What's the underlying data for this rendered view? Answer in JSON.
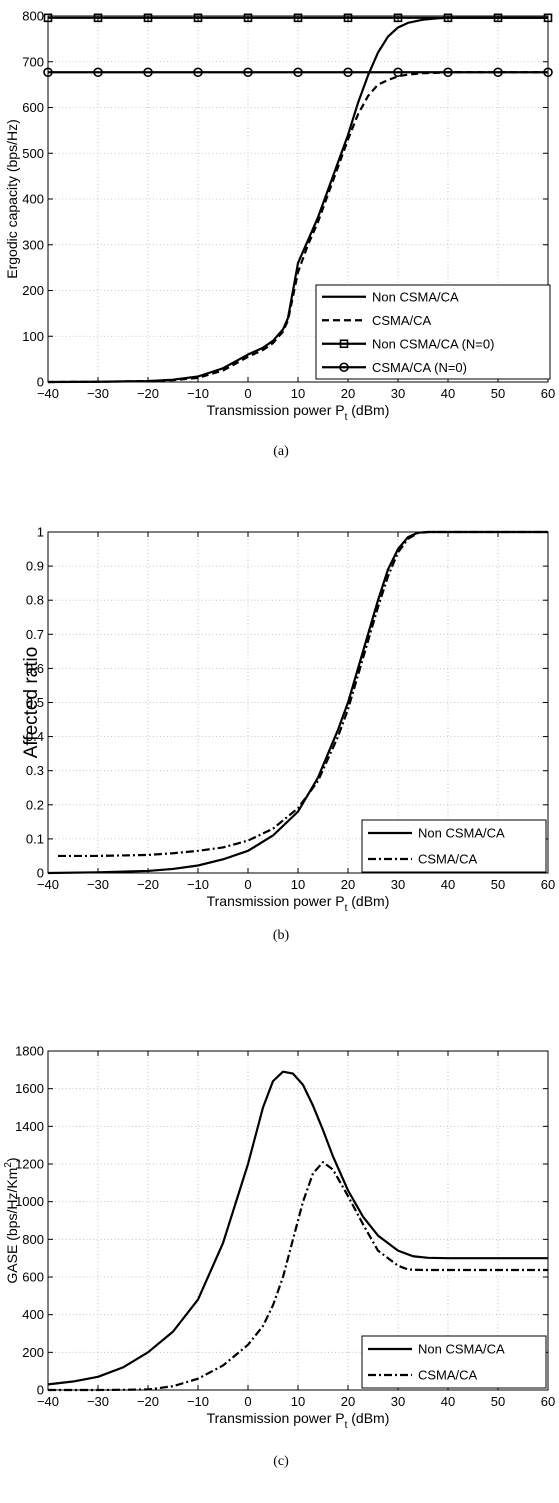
{
  "chart_data": [
    {
      "type": "line",
      "caption": "(a)",
      "xlabel_main": "Transmission power P",
      "xlabel_sub": "t",
      "xlabel_tail": " (dBm)",
      "ylabel": "Ergodic capacity (bps/Hz)",
      "xlim": [
        -40,
        60
      ],
      "ylim": [
        0,
        800
      ],
      "xticks": [
        "−40",
        "−30",
        "−20",
        "−10",
        "0",
        "10",
        "20",
        "30",
        "40",
        "50",
        "60"
      ],
      "yticks": [
        "0",
        "100",
        "200",
        "300",
        "400",
        "500",
        "600",
        "700",
        "800"
      ],
      "grid": true,
      "legend_position": "bottom-right",
      "series": [
        {
          "name": "Non CSMA/CA",
          "style": "solid",
          "marker": "none",
          "x": [
            -40,
            -30,
            -20,
            -15,
            -10,
            -5,
            0,
            3,
            5,
            7,
            8,
            10,
            12,
            14,
            16,
            18,
            20,
            22,
            24,
            26,
            28,
            30,
            32,
            35,
            38,
            40,
            45,
            50,
            60
          ],
          "y": [
            0,
            0.5,
            2,
            5,
            12,
            30,
            60,
            75,
            90,
            115,
            140,
            260,
            310,
            360,
            420,
            480,
            540,
            610,
            670,
            720,
            755,
            775,
            785,
            792,
            795,
            796,
            796,
            796,
            796
          ]
        },
        {
          "name": "CSMA/CA",
          "style": "dashed",
          "marker": "none",
          "x": [
            -40,
            -30,
            -20,
            -15,
            -10,
            -5,
            0,
            3,
            5,
            7,
            8,
            10,
            12,
            14,
            16,
            18,
            20,
            22,
            24,
            26,
            28,
            30,
            32,
            35,
            38,
            40,
            45,
            50,
            60
          ],
          "y": [
            0,
            0.5,
            2,
            4,
            9,
            25,
            55,
            70,
            85,
            110,
            135,
            240,
            300,
            350,
            410,
            470,
            530,
            585,
            625,
            650,
            660,
            668,
            672,
            675,
            676,
            677,
            677,
            677,
            677
          ]
        },
        {
          "name": "Non CSMA/CA (N=0)",
          "style": "solid",
          "marker": "square",
          "x": [
            -40,
            -30,
            -20,
            -10,
            0,
            10,
            20,
            30,
            40,
            50,
            60
          ],
          "y": [
            796,
            796,
            796,
            796,
            796,
            796,
            796,
            796,
            796,
            796,
            796
          ]
        },
        {
          "name": "CSMA/CA (N=0)",
          "style": "solid",
          "marker": "circle",
          "x": [
            -40,
            -30,
            -20,
            -10,
            0,
            10,
            20,
            30,
            40,
            50,
            60
          ],
          "y": [
            677,
            677,
            677,
            677,
            677,
            677,
            677,
            677,
            677,
            677,
            677
          ]
        }
      ]
    },
    {
      "type": "line",
      "caption": "(b)",
      "xlabel_main": "Transmission power P",
      "xlabel_sub": "t",
      "xlabel_tail": " (dBm)",
      "ylabel": "Affected ratio",
      "xlim": [
        -40,
        60
      ],
      "ylim": [
        0,
        1
      ],
      "xticks": [
        "−40",
        "−30",
        "−20",
        "−10",
        "0",
        "10",
        "20",
        "30",
        "40",
        "50",
        "60"
      ],
      "yticks": [
        "0",
        "0.1",
        "0.2",
        "0.3",
        "0.4",
        "0.5",
        "0.6",
        "0.7",
        "0.8",
        "0.9",
        "1"
      ],
      "grid": true,
      "legend_position": "bottom-right",
      "series": [
        {
          "name": "Non CSMA/CA",
          "style": "solid",
          "marker": "none",
          "x": [
            -40,
            -30,
            -20,
            -15,
            -10,
            -5,
            0,
            5,
            10,
            14,
            18,
            20,
            22,
            24,
            26,
            28,
            30,
            32,
            34,
            36,
            40,
            50,
            60
          ],
          "y": [
            0,
            0.002,
            0.006,
            0.012,
            0.022,
            0.04,
            0.065,
            0.11,
            0.18,
            0.28,
            0.42,
            0.5,
            0.6,
            0.7,
            0.8,
            0.89,
            0.95,
            0.985,
            0.998,
            1,
            1,
            1,
            1
          ]
        },
        {
          "name": "CSMA/CA",
          "style": "dashdot",
          "marker": "none",
          "x": [
            -38,
            -30,
            -20,
            -15,
            -10,
            -5,
            0,
            5,
            10,
            14,
            18,
            20,
            22,
            24,
            26,
            28,
            30,
            32,
            34,
            36,
            40,
            50,
            60
          ],
          "y": [
            0.05,
            0.05,
            0.053,
            0.058,
            0.065,
            0.075,
            0.095,
            0.13,
            0.19,
            0.27,
            0.4,
            0.48,
            0.58,
            0.68,
            0.78,
            0.87,
            0.94,
            0.98,
            0.997,
            1,
            1,
            1,
            1
          ]
        }
      ]
    },
    {
      "type": "line",
      "caption": "(c)",
      "xlabel_main": "Transmission power P",
      "xlabel_sub": "t",
      "xlabel_tail": " (dBm)",
      "ylabel_main": "GASE (bps/Hz/Km",
      "ylabel_sup": "2",
      "ylabel_tail": ")",
      "xlim": [
        -40,
        60
      ],
      "ylim": [
        0,
        1800
      ],
      "xticks": [
        "−40",
        "−30",
        "−20",
        "−10",
        "0",
        "10",
        "20",
        "30",
        "40",
        "50",
        "60"
      ],
      "yticks": [
        "0",
        "200",
        "400",
        "600",
        "800",
        "1000",
        "1200",
        "1400",
        "1600",
        "1800"
      ],
      "grid": true,
      "legend_position": "bottom-right",
      "series": [
        {
          "name": "Non CSMA/CA",
          "style": "solid",
          "marker": "none",
          "x": [
            -40,
            -35,
            -30,
            -25,
            -20,
            -15,
            -10,
            -5,
            0,
            3,
            5,
            7,
            9,
            11,
            13,
            15,
            17,
            20,
            23,
            26,
            30,
            33,
            36,
            40,
            50,
            60
          ],
          "y": [
            30,
            45,
            70,
            120,
            200,
            310,
            480,
            780,
            1200,
            1500,
            1640,
            1690,
            1680,
            1620,
            1510,
            1380,
            1240,
            1060,
            920,
            820,
            740,
            710,
            702,
            700,
            700,
            700
          ]
        },
        {
          "name": "CSMA/CA",
          "style": "dashdot",
          "marker": "none",
          "x": [
            -40,
            -30,
            -25,
            -20,
            -15,
            -10,
            -5,
            0,
            3,
            5,
            7,
            9,
            11,
            13,
            15,
            17,
            20,
            23,
            26,
            30,
            32,
            35,
            40,
            50,
            60
          ],
          "y": [
            0,
            0,
            1,
            3,
            20,
            60,
            130,
            240,
            340,
            450,
            600,
            800,
            1000,
            1150,
            1210,
            1170,
            1030,
            880,
            740,
            660,
            640,
            637,
            637,
            637,
            637
          ]
        }
      ]
    }
  ]
}
